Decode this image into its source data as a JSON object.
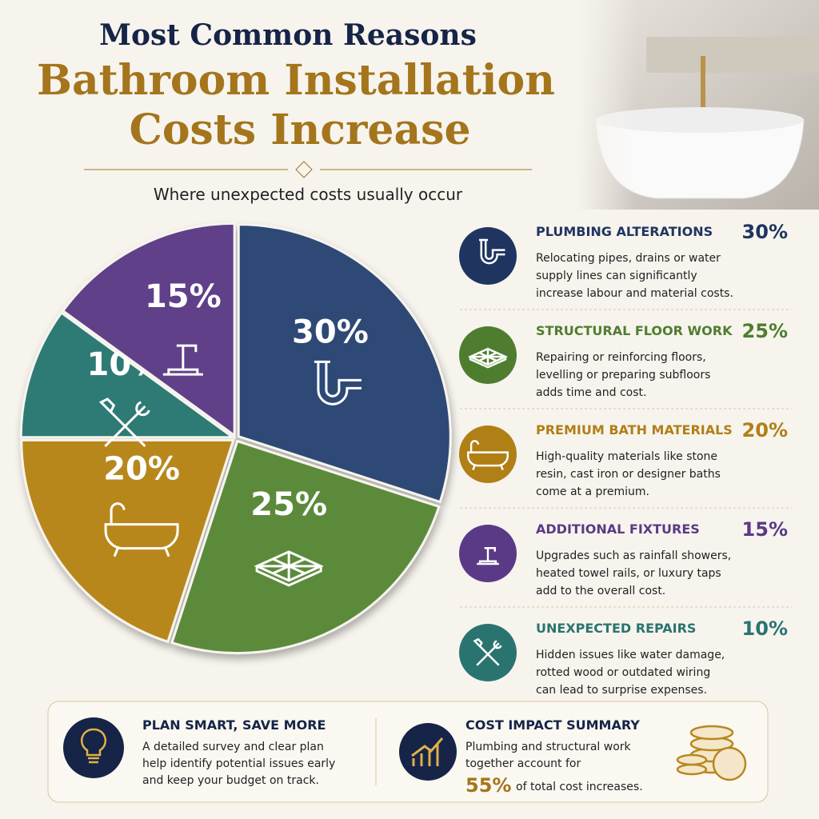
{
  "header": {
    "title_line1": "Most Common Reasons",
    "title_line2": "Bathroom Installation",
    "title_line3": "Costs Increase",
    "subtitle": "Where unexpected costs usually occur"
  },
  "chart_data": {
    "type": "pie",
    "values": [
      30,
      25,
      20,
      10,
      15
    ],
    "value_labels": [
      "30%",
      "25%",
      "20%",
      "10%",
      "15%"
    ],
    "colors": [
      "#2d4876",
      "#5b8a3a",
      "#b8871f",
      "#2e7a74",
      "#5f4089"
    ]
  },
  "factors": [
    {
      "title": "PLUMBING ALTERATIONS",
      "percent": "30%",
      "color": "#1f3560",
      "description": [
        "Relocating pipes, drains or water",
        "supply lines can significantly",
        "increase labour and material costs."
      ]
    },
    {
      "title": "STRUCTURAL FLOOR WORK",
      "percent": "25%",
      "color": "#4f7d2f",
      "description": [
        "Repairing or reinforcing floors,",
        "levelling or preparing subfloors",
        "adds time and cost."
      ]
    },
    {
      "title": "PREMIUM BATH MATERIALS",
      "percent": "20%",
      "color": "#b07f15",
      "description": [
        "High-quality materials like stone",
        "resin, cast iron or designer baths",
        "come at a premium."
      ]
    },
    {
      "title": "ADDITIONAL FIXTURES",
      "percent": "15%",
      "color": "#5a3a86",
      "description": [
        "Upgrades such as rainfall showers,",
        "heated towel rails, or luxury taps",
        "add to the overall cost."
      ]
    },
    {
      "title": "UNEXPECTED REPAIRS",
      "percent": "10%",
      "color": "#2a7470",
      "description": [
        "Hidden issues like water damage,",
        "rotted wood or outdated wiring",
        "can lead to surprise expenses."
      ]
    }
  ],
  "footer": {
    "tip": {
      "title": "PLAN SMART, SAVE MORE",
      "lines": [
        "A detailed survey and clear plan",
        "help identify potential issues early",
        "and keep your budget on track."
      ]
    },
    "summary": {
      "title": "COST IMPACT SUMMARY",
      "lines": [
        "Plumbing and structural work",
        "together account for"
      ],
      "highlight": "55%",
      "tail": "of total cost increases."
    }
  }
}
